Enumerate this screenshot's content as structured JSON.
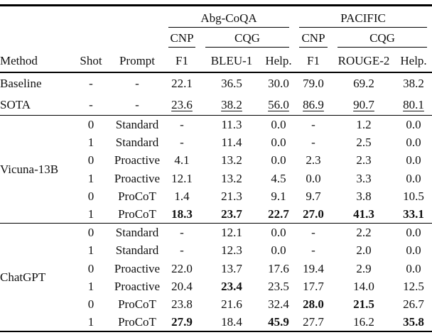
{
  "table": {
    "groups": [
      {
        "label": "Abg-CoQA"
      },
      {
        "label": "PACIFIC"
      }
    ],
    "subgroups": [
      {
        "label": "CNP"
      },
      {
        "label": "CQG"
      },
      {
        "label": "CNP"
      },
      {
        "label": "CQG"
      }
    ],
    "columns": [
      "Method",
      "Shot",
      "Prompt",
      "F1",
      "BLEU-1",
      "Help.",
      "F1",
      "ROUGE-2",
      "Help."
    ],
    "sections": [
      {
        "rows": [
          {
            "method": "Baseline",
            "shot": "-",
            "prompt": "-",
            "values": [
              {
                "t": "22.1"
              },
              {
                "t": "36.5"
              },
              {
                "t": "30.0"
              },
              {
                "t": "79.0"
              },
              {
                "t": "69.2"
              },
              {
                "t": "38.2"
              }
            ]
          },
          {
            "method": "SOTA",
            "shot": "-",
            "prompt": "-",
            "values": [
              {
                "t": "23.6",
                "u": true
              },
              {
                "t": "38.2",
                "u": true
              },
              {
                "t": "56.0",
                "u": true
              },
              {
                "t": "86.9",
                "u": true
              },
              {
                "t": "90.7",
                "u": true
              },
              {
                "t": "80.1",
                "u": true
              }
            ]
          }
        ]
      },
      {
        "method": "Vicuna-13B",
        "rows": [
          {
            "shot": "0",
            "prompt": "Standard",
            "values": [
              {
                "t": "-"
              },
              {
                "t": "11.3"
              },
              {
                "t": "0.0"
              },
              {
                "t": "-"
              },
              {
                "t": "1.2"
              },
              {
                "t": "0.0"
              }
            ]
          },
          {
            "shot": "1",
            "prompt": "Standard",
            "values": [
              {
                "t": "-"
              },
              {
                "t": "11.4"
              },
              {
                "t": "0.0"
              },
              {
                "t": "-"
              },
              {
                "t": "2.5"
              },
              {
                "t": "0.0"
              }
            ]
          },
          {
            "shot": "0",
            "prompt": "Proactive",
            "values": [
              {
                "t": "4.1"
              },
              {
                "t": "13.2"
              },
              {
                "t": "0.0"
              },
              {
                "t": "2.3"
              },
              {
                "t": "2.3"
              },
              {
                "t": "0.0"
              }
            ]
          },
          {
            "shot": "1",
            "prompt": "Proactive",
            "values": [
              {
                "t": "12.1"
              },
              {
                "t": "13.2"
              },
              {
                "t": "4.5"
              },
              {
                "t": "0.0"
              },
              {
                "t": "3.3"
              },
              {
                "t": "0.0"
              }
            ]
          },
          {
            "shot": "0",
            "prompt": "ProCoT",
            "values": [
              {
                "t": "1.4"
              },
              {
                "t": "21.3"
              },
              {
                "t": "9.1"
              },
              {
                "t": "9.7"
              },
              {
                "t": "3.8"
              },
              {
                "t": "10.5"
              }
            ]
          },
          {
            "shot": "1",
            "prompt": "ProCoT",
            "values": [
              {
                "t": "18.3",
                "b": true
              },
              {
                "t": "23.7",
                "b": true
              },
              {
                "t": "22.7",
                "b": true
              },
              {
                "t": "27.0",
                "b": true
              },
              {
                "t": "41.3",
                "b": true
              },
              {
                "t": "33.1",
                "b": true
              }
            ]
          }
        ]
      },
      {
        "method": "ChatGPT",
        "rows": [
          {
            "shot": "0",
            "prompt": "Standard",
            "values": [
              {
                "t": "-"
              },
              {
                "t": "12.1"
              },
              {
                "t": "0.0"
              },
              {
                "t": "-"
              },
              {
                "t": "2.2"
              },
              {
                "t": "0.0"
              }
            ]
          },
          {
            "shot": "1",
            "prompt": "Standard",
            "values": [
              {
                "t": "-"
              },
              {
                "t": "12.3"
              },
              {
                "t": "0.0"
              },
              {
                "t": "-"
              },
              {
                "t": "2.0"
              },
              {
                "t": "0.0"
              }
            ]
          },
          {
            "shot": "0",
            "prompt": "Proactive",
            "values": [
              {
                "t": "22.0"
              },
              {
                "t": "13.7"
              },
              {
                "t": "17.6"
              },
              {
                "t": "19.4"
              },
              {
                "t": "2.9"
              },
              {
                "t": "0.0"
              }
            ]
          },
          {
            "shot": "1",
            "prompt": "Proactive",
            "values": [
              {
                "t": "20.4"
              },
              {
                "t": "23.4",
                "b": true
              },
              {
                "t": "23.5"
              },
              {
                "t": "17.7"
              },
              {
                "t": "14.0"
              },
              {
                "t": "12.5"
              }
            ]
          },
          {
            "shot": "0",
            "prompt": "ProCoT",
            "values": [
              {
                "t": "23.8"
              },
              {
                "t": "21.6"
              },
              {
                "t": "32.4"
              },
              {
                "t": "28.0",
                "b": true
              },
              {
                "t": "21.5",
                "b": true
              },
              {
                "t": "26.7"
              }
            ]
          },
          {
            "shot": "1",
            "prompt": "ProCoT",
            "values": [
              {
                "t": "27.9",
                "b": true
              },
              {
                "t": "18.4"
              },
              {
                "t": "45.9",
                "b": true
              },
              {
                "t": "27.7"
              },
              {
                "t": "16.2"
              },
              {
                "t": "35.8",
                "b": true
              }
            ]
          }
        ]
      }
    ]
  }
}
